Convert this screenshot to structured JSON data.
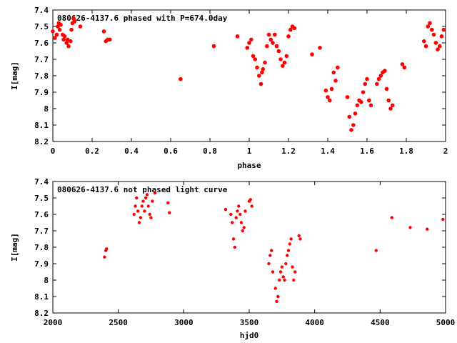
{
  "chart_data": [
    {
      "type": "scatter",
      "title": "080626-4137.6 phased with P=674.0day",
      "xlabel": "phase",
      "ylabel": "I[mag]",
      "xlim": [
        0,
        2
      ],
      "ylim": [
        8.2,
        7.4
      ],
      "y_inverted": true,
      "grid": false,
      "marker_color": "#ff0000",
      "xticks": [
        "0",
        "0.2",
        "0.4",
        "0.6",
        "0.8",
        "1",
        "1.2",
        "1.4",
        "1.6",
        "1.8",
        "2"
      ],
      "yticks": [
        "7.4",
        "7.5",
        "7.6",
        "7.7",
        "7.8",
        "7.9",
        "8",
        "8.1",
        "8.2"
      ],
      "x": [
        0.0,
        0.01,
        0.02,
        0.025,
        0.03,
        0.035,
        0.04,
        0.05,
        0.055,
        0.06,
        0.07,
        0.075,
        0.08,
        0.09,
        0.095,
        0.1,
        0.105,
        0.11,
        0.14,
        0.26,
        0.27,
        0.28,
        0.29,
        0.65,
        0.82,
        0.94,
        0.99,
        1.0,
        1.01,
        1.02,
        1.03,
        1.04,
        1.05,
        1.06,
        1.065,
        1.07,
        1.08,
        1.09,
        1.1,
        1.11,
        1.12,
        1.13,
        1.14,
        1.15,
        1.16,
        1.17,
        1.18,
        1.19,
        1.2,
        1.21,
        1.22,
        1.23,
        1.32,
        1.36,
        1.39,
        1.4,
        1.41,
        1.42,
        1.43,
        1.44,
        1.45,
        1.5,
        1.51,
        1.52,
        1.53,
        1.54,
        1.55,
        1.56,
        1.57,
        1.58,
        1.59,
        1.6,
        1.61,
        1.62,
        1.65,
        1.66,
        1.67,
        1.68,
        1.69,
        1.7,
        1.71,
        1.72,
        1.73,
        1.78,
        1.79,
        1.89,
        1.9,
        1.91,
        1.92,
        1.93,
        1.94,
        1.95,
        1.96,
        1.97,
        1.98,
        1.99
      ],
      "y": [
        7.53,
        7.57,
        7.55,
        7.5,
        7.48,
        7.52,
        7.49,
        7.55,
        7.58,
        7.56,
        7.6,
        7.58,
        7.62,
        7.59,
        7.52,
        7.48,
        7.45,
        7.47,
        7.5,
        7.53,
        7.59,
        7.58,
        7.58,
        7.82,
        7.62,
        7.56,
        7.63,
        7.6,
        7.58,
        7.68,
        7.7,
        7.75,
        7.8,
        7.85,
        7.78,
        7.76,
        7.72,
        7.62,
        7.55,
        7.58,
        7.6,
        7.55,
        7.62,
        7.65,
        7.7,
        7.74,
        7.72,
        7.68,
        7.56,
        7.52,
        7.5,
        7.51,
        7.67,
        7.63,
        7.89,
        7.93,
        7.95,
        7.88,
        7.78,
        7.83,
        7.75,
        7.93,
        8.05,
        8.13,
        8.1,
        8.03,
        7.98,
        7.95,
        7.96,
        7.9,
        7.85,
        7.82,
        7.95,
        7.98,
        7.85,
        7.82,
        7.8,
        7.78,
        7.77,
        7.88,
        7.95,
        8.0,
        7.98,
        7.73,
        7.75,
        7.59,
        7.62,
        7.5,
        7.48,
        7.52,
        7.55,
        7.6,
        7.64,
        7.62,
        7.56,
        7.52
      ]
    },
    {
      "type": "scatter",
      "title": "080626-4137.6 not phased light curve",
      "xlabel": "hjd0",
      "ylabel": "I[mag]",
      "xlim": [
        2000,
        5000
      ],
      "ylim": [
        8.2,
        7.4
      ],
      "y_inverted": true,
      "grid": false,
      "marker_color": "#ff0000",
      "xticks": [
        "2000",
        "2500",
        "3000",
        "3500",
        "4000",
        "4500",
        "5000"
      ],
      "yticks": [
        "7.4",
        "7.5",
        "7.6",
        "7.7",
        "7.8",
        "7.9",
        "8",
        "8.1",
        "8.2"
      ],
      "x": [
        2395,
        2405,
        2410,
        2620,
        2630,
        2640,
        2650,
        2660,
        2670,
        2680,
        2690,
        2700,
        2710,
        2720,
        2730,
        2740,
        2750,
        2760,
        2780,
        2880,
        2890,
        3320,
        3360,
        3370,
        3380,
        3390,
        3400,
        3410,
        3420,
        3430,
        3440,
        3450,
        3460,
        3470,
        3500,
        3510,
        3520,
        3650,
        3660,
        3670,
        3680,
        3700,
        3710,
        3720,
        3730,
        3740,
        3750,
        3760,
        3770,
        3780,
        3790,
        3800,
        3810,
        3820,
        3830,
        3840,
        3850,
        3880,
        3890,
        4470,
        4590,
        4730,
        4860,
        4980
      ],
      "y": [
        7.86,
        7.82,
        7.81,
        7.6,
        7.55,
        7.5,
        7.58,
        7.65,
        7.62,
        7.55,
        7.52,
        7.58,
        7.5,
        7.48,
        7.55,
        7.6,
        7.62,
        7.52,
        7.47,
        7.53,
        7.59,
        7.57,
        7.6,
        7.65,
        7.75,
        7.8,
        7.62,
        7.58,
        7.55,
        7.6,
        7.65,
        7.7,
        7.68,
        7.58,
        7.52,
        7.51,
        7.55,
        7.9,
        7.85,
        7.82,
        7.95,
        8.05,
        8.13,
        8.1,
        8.0,
        7.95,
        7.92,
        7.98,
        8.0,
        7.9,
        7.85,
        7.82,
        7.78,
        7.75,
        7.92,
        8.0,
        7.95,
        7.73,
        7.75,
        7.82,
        7.62,
        7.68,
        7.69,
        7.63
      ]
    }
  ]
}
